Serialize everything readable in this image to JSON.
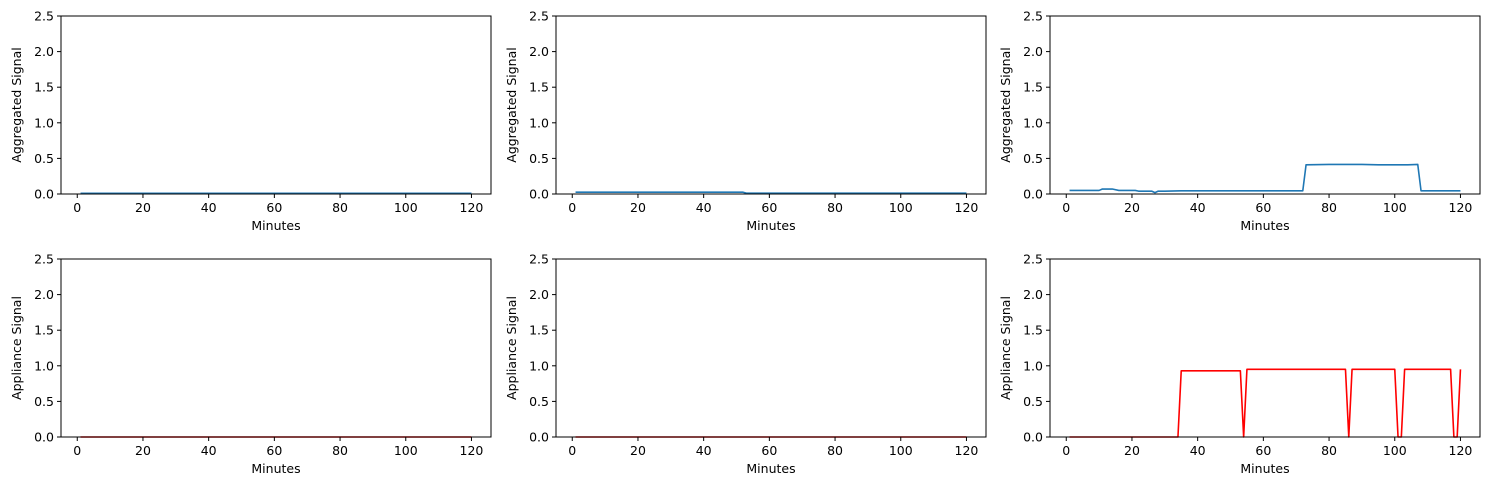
{
  "figure": {
    "background": "#ffffff",
    "colors": {
      "aggregated": "#1f77b4",
      "appliance": "#ff0000"
    }
  },
  "chart_data": [
    {
      "type": "line",
      "xlabel": "Minutes",
      "ylabel": "Aggregated Signal",
      "xlim": [
        0,
        120
      ],
      "ylim": [
        0,
        2.5
      ],
      "xticks": [
        "0",
        "20",
        "40",
        "60",
        "80",
        "100",
        "120"
      ],
      "yticks": [
        "0.0",
        "0.5",
        "1.0",
        "1.5",
        "2.0",
        "2.5"
      ],
      "grid": false,
      "series": [
        {
          "color": "#1f77b4",
          "x": [
            1,
            120
          ],
          "y": [
            0.01,
            0.01
          ]
        }
      ]
    },
    {
      "type": "line",
      "xlabel": "Minutes",
      "ylabel": "Aggregated Signal",
      "xlim": [
        0,
        120
      ],
      "ylim": [
        0,
        2.5
      ],
      "xticks": [
        "0",
        "20",
        "40",
        "60",
        "80",
        "100",
        "120"
      ],
      "yticks": [
        "0.0",
        "0.5",
        "1.0",
        "1.5",
        "2.0",
        "2.5"
      ],
      "grid": false,
      "series": [
        {
          "color": "#1f77b4",
          "x": [
            1,
            52,
            53,
            120
          ],
          "y": [
            0.025,
            0.025,
            0.012,
            0.012
          ]
        }
      ]
    },
    {
      "type": "line",
      "xlabel": "Minutes",
      "ylabel": "Aggregated Signal",
      "xlim": [
        0,
        120
      ],
      "ylim": [
        0,
        2.5
      ],
      "xticks": [
        "0",
        "20",
        "40",
        "60",
        "80",
        "100",
        "120"
      ],
      "yticks": [
        "0.0",
        "0.5",
        "1.0",
        "1.5",
        "2.0",
        "2.5"
      ],
      "grid": false,
      "series": [
        {
          "color": "#1f77b4",
          "x": [
            1,
            10,
            11,
            14,
            16,
            17,
            21,
            22,
            26,
            27,
            28,
            30,
            35,
            72,
            73,
            80,
            90,
            95,
            100,
            104,
            107,
            108,
            120
          ],
          "y": [
            0.05,
            0.05,
            0.07,
            0.07,
            0.05,
            0.05,
            0.05,
            0.04,
            0.04,
            0.02,
            0.04,
            0.04,
            0.045,
            0.045,
            0.41,
            0.415,
            0.415,
            0.41,
            0.41,
            0.41,
            0.415,
            0.045,
            0.045
          ]
        }
      ]
    },
    {
      "type": "line",
      "xlabel": "Minutes",
      "ylabel": "Appliance Signal",
      "xlim": [
        0,
        120
      ],
      "ylim": [
        0,
        2.5
      ],
      "xticks": [
        "0",
        "20",
        "40",
        "60",
        "80",
        "100",
        "120"
      ],
      "yticks": [
        "0.0",
        "0.5",
        "1.0",
        "1.5",
        "2.0",
        "2.5"
      ],
      "grid": false,
      "series": [
        {
          "color": "#ff0000",
          "x": [
            1,
            120
          ],
          "y": [
            0,
            0
          ]
        }
      ]
    },
    {
      "type": "line",
      "xlabel": "Minutes",
      "ylabel": "Appliance Signal",
      "xlim": [
        0,
        120
      ],
      "ylim": [
        0,
        2.5
      ],
      "xticks": [
        "0",
        "20",
        "40",
        "60",
        "80",
        "100",
        "120"
      ],
      "yticks": [
        "0.0",
        "0.5",
        "1.0",
        "1.5",
        "2.0",
        "2.5"
      ],
      "grid": false,
      "series": [
        {
          "color": "#ff0000",
          "x": [
            1,
            120
          ],
          "y": [
            0,
            0
          ]
        }
      ]
    },
    {
      "type": "line",
      "xlabel": "Minutes",
      "ylabel": "Appliance Signal",
      "xlim": [
        0,
        120
      ],
      "ylim": [
        0,
        2.5
      ],
      "xticks": [
        "0",
        "20",
        "40",
        "60",
        "80",
        "100",
        "120"
      ],
      "yticks": [
        "0.0",
        "0.5",
        "1.0",
        "1.5",
        "2.0",
        "2.5"
      ],
      "grid": false,
      "series": [
        {
          "color": "#ff0000",
          "x": [
            1,
            34,
            35,
            53,
            54,
            55,
            85,
            86,
            87,
            100,
            101,
            102,
            103,
            117,
            118,
            119,
            120
          ],
          "y": [
            0,
            0,
            0.93,
            0.93,
            0,
            0.95,
            0.95,
            0,
            0.95,
            0.95,
            0,
            0,
            0.95,
            0.95,
            0,
            0,
            0.95
          ]
        }
      ]
    }
  ]
}
